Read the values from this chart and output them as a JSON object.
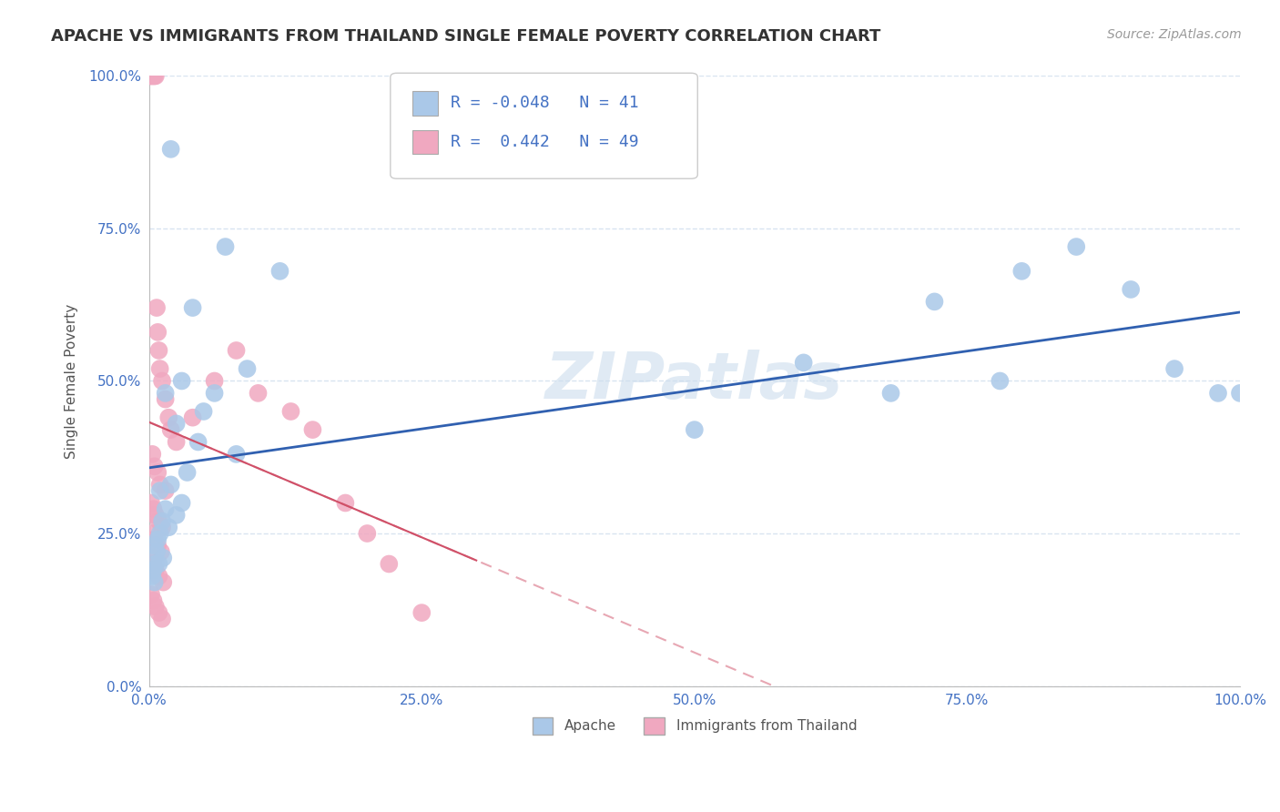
{
  "title": "APACHE VS IMMIGRANTS FROM THAILAND SINGLE FEMALE POVERTY CORRELATION CHART",
  "source": "Source: ZipAtlas.com",
  "ylabel": "Single Female Poverty",
  "legend_label1": "Apache",
  "legend_label2": "Immigrants from Thailand",
  "R1": -0.048,
  "N1": 41,
  "R2": 0.442,
  "N2": 49,
  "blue_color": "#aac8e8",
  "pink_color": "#f0a8c0",
  "blue_line_color": "#3060b0",
  "pink_line_color": "#d05068",
  "watermark": "ZIPatlas",
  "title_fontsize": 13,
  "source_fontsize": 10,
  "tick_color": "#4472c4",
  "background_color": "#ffffff",
  "grid_color": "#d8e4f0",
  "xmin": 0.0,
  "xmax": 100.0,
  "ymin": 0.0,
  "ymax": 100.0,
  "blue_x": [
    2.0,
    7.0,
    12.0,
    4.0,
    9.0,
    3.0,
    6.0,
    1.5,
    5.0,
    2.5,
    4.5,
    8.0,
    3.5,
    2.0,
    1.0,
    3.0,
    1.5,
    2.5,
    1.2,
    1.8,
    1.0,
    0.8,
    0.5,
    0.7,
    1.3,
    0.6,
    0.9,
    0.4,
    0.3,
    0.5,
    50.0,
    60.0,
    68.0,
    72.0,
    80.0,
    85.0,
    90.0,
    78.0,
    94.0,
    98.0,
    100.0
  ],
  "blue_y": [
    88.0,
    72.0,
    68.0,
    62.0,
    52.0,
    50.0,
    48.0,
    48.0,
    45.0,
    43.0,
    40.0,
    38.0,
    35.0,
    33.0,
    32.0,
    30.0,
    29.0,
    28.0,
    27.0,
    26.0,
    25.0,
    24.0,
    23.0,
    22.0,
    21.0,
    20.0,
    20.0,
    19.0,
    18.0,
    17.0,
    42.0,
    53.0,
    48.0,
    63.0,
    68.0,
    72.0,
    65.0,
    50.0,
    52.0,
    48.0,
    48.0
  ],
  "pink_x": [
    0.1,
    0.2,
    0.3,
    0.4,
    0.5,
    0.6,
    0.7,
    0.8,
    0.9,
    1.0,
    1.2,
    1.5,
    1.8,
    2.0,
    2.5,
    0.3,
    0.5,
    0.8,
    1.0,
    1.5,
    0.2,
    0.4,
    0.6,
    0.9,
    1.2,
    0.3,
    0.5,
    0.8,
    1.1,
    0.2,
    0.4,
    0.6,
    0.9,
    1.3,
    0.2,
    0.4,
    0.6,
    0.9,
    1.2,
    4.0,
    6.0,
    8.0,
    10.0,
    13.0,
    15.0,
    18.0,
    20.0,
    22.0,
    25.0
  ],
  "pink_y": [
    100.0,
    100.0,
    100.0,
    100.0,
    100.0,
    100.0,
    62.0,
    58.0,
    55.0,
    52.0,
    50.0,
    47.0,
    44.0,
    42.0,
    40.0,
    38.0,
    36.0,
    35.0,
    33.0,
    32.0,
    30.0,
    29.0,
    28.0,
    27.0,
    26.0,
    25.0,
    24.0,
    23.0,
    22.0,
    21.0,
    20.0,
    19.0,
    18.0,
    17.0,
    15.0,
    14.0,
    13.0,
    12.0,
    11.0,
    44.0,
    50.0,
    55.0,
    48.0,
    45.0,
    42.0,
    30.0,
    25.0,
    20.0,
    12.0
  ]
}
